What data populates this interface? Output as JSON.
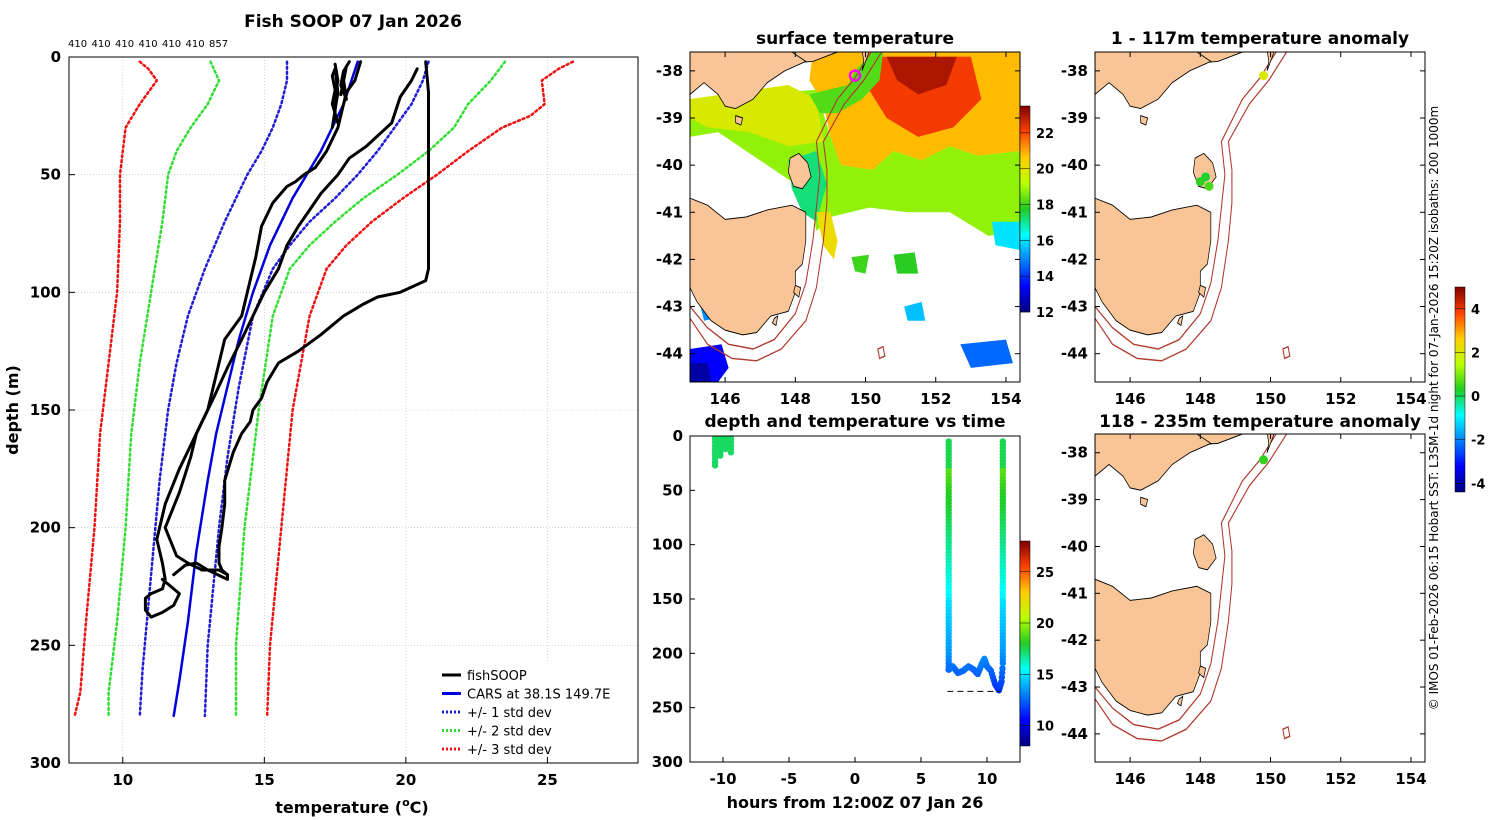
{
  "colors": {
    "land": "#f9c596",
    "fishsoop": "#000000",
    "cars": "#0000dd",
    "std1": "#1d1dd6",
    "std2": "#33dd33",
    "std3": "#ee1111",
    "isobath": "#b03a2e"
  },
  "side_note": "© IMOS 01-Feb-2026 06:15 Hobart SST: L3SM-1d night for 07-Jan-2026 15:20Z isobaths: 200  1000m",
  "chart_data": [
    {
      "id": "profile",
      "type": "line",
      "title": "Fish SOOP 07 Jan 2026",
      "xlabel": "temperature (°C)",
      "ylabel": "depth (m)",
      "xlim": [
        8.1,
        28.2
      ],
      "ylim": [
        300,
        0
      ],
      "xticks": [
        10,
        15,
        20,
        25
      ],
      "yticks": [
        0,
        50,
        100,
        150,
        200,
        250,
        300
      ],
      "grid": true,
      "counts": [
        "410",
        "410",
        "410",
        "410",
        "410",
        "410",
        "857"
      ],
      "legend": [
        {
          "label": "fishSOOP",
          "style": "fishsoop"
        },
        {
          "label": "CARS at 38.1S 149.7E",
          "style": "cars"
        },
        {
          "label": "+/- 1 std dev",
          "style": "std1"
        },
        {
          "label": "+/- 2 std dev",
          "style": "std2"
        },
        {
          "label": "+/- 3 std dev",
          "style": "std3"
        }
      ],
      "series": [
        {
          "name": "fishSOOP cast 1",
          "style": "fishsoop",
          "x": [
            17.5,
            17.6,
            17.5,
            17.5,
            17.6,
            17.4,
            17.5,
            17.4,
            17.5,
            17.6,
            17.4
          ],
          "y": [
            3,
            10,
            17,
            25,
            28,
            20,
            14,
            8,
            5,
            15,
            30
          ]
        },
        {
          "name": "fishSOOP cast 2",
          "style": "fishsoop",
          "x": [
            18.0,
            17.8,
            17.7,
            17.9,
            17.8,
            17.9,
            17.7
          ],
          "y": [
            2,
            6,
            12,
            18,
            10,
            4,
            16
          ]
        },
        {
          "name": "fishSOOP cast 3",
          "style": "fishsoop",
          "x": [
            20.7,
            20.8,
            20.8,
            20.8,
            20.8,
            20.7,
            19.8,
            19.0,
            18.5,
            17.8,
            17.0,
            16.2,
            15.5,
            15.1,
            14.9,
            14.6,
            14.5,
            14.2,
            13.9,
            13.6,
            13.6,
            13.5,
            13.4,
            13.4,
            13.4,
            13.5,
            13.6,
            13.7
          ],
          "y": [
            2,
            15,
            45,
            85,
            90,
            95,
            100,
            102,
            105,
            110,
            118,
            125,
            130,
            138,
            145,
            150,
            155,
            160,
            168,
            180,
            190,
            200,
            208,
            212,
            215,
            218,
            219,
            220
          ]
        },
        {
          "name": "fishSOOP cast 4",
          "style": "fishsoop",
          "x": [
            20.4,
            20.2,
            19.8,
            19.5,
            18.6,
            18.0,
            17.6,
            17.0,
            16.6,
            16.2,
            15.8,
            15.5,
            15.0,
            14.6,
            14.2,
            13.7,
            13.2,
            12.6,
            12.0,
            11.5,
            11.2,
            11.4,
            11.5,
            11.4,
            11.0,
            10.8,
            10.8,
            11.0,
            11.4,
            11.8,
            12.0,
            11.8,
            11.4
          ],
          "y": [
            5,
            10,
            17,
            28,
            38,
            43,
            50,
            58,
            65,
            72,
            80,
            90,
            100,
            110,
            120,
            132,
            145,
            160,
            175,
            190,
            205,
            215,
            222,
            226,
            228,
            230,
            235,
            238,
            236,
            233,
            228,
            226,
            222
          ]
        },
        {
          "name": "fishSOOP cast 5",
          "style": "fishsoop",
          "x": [
            18.4,
            18.2,
            17.9,
            17.6,
            17.2,
            16.8,
            16.4,
            16.1,
            15.8,
            15.3,
            14.9,
            14.7,
            14.4,
            14.2,
            13.6,
            13.2,
            13.0,
            12.6,
            12.4,
            12.0,
            11.5,
            11.9,
            12.3,
            12.8,
            13.4,
            13.7,
            13.7,
            13.0,
            12.6,
            12.2,
            11.8
          ],
          "y": [
            2,
            10,
            15,
            30,
            40,
            47,
            50,
            53,
            55,
            62,
            72,
            85,
            100,
            110,
            120,
            140,
            150,
            160,
            170,
            185,
            200,
            212,
            215,
            218,
            218,
            220,
            222,
            218,
            215,
            216,
            220
          ]
        },
        {
          "name": "CARS at 38.1S 149.7E",
          "style": "cars",
          "x": [
            18.3,
            17.8,
            17.0,
            16.0,
            15.2,
            14.6,
            14.1,
            13.7,
            13.3,
            13.0,
            12.6,
            12.3,
            12.0,
            11.8
          ],
          "y": [
            2,
            20,
            40,
            60,
            80,
            100,
            120,
            140,
            160,
            180,
            210,
            240,
            265,
            280
          ]
        },
        {
          "name": "-1 std dev",
          "style": "std1",
          "x": [
            15.8,
            15.8,
            15.6,
            15.3,
            14.9,
            14.4,
            13.6,
            12.9,
            12.3,
            11.9,
            11.6,
            11.3,
            11.0,
            10.7,
            10.6
          ],
          "y": [
            2,
            10,
            20,
            30,
            40,
            50,
            70,
            90,
            110,
            130,
            150,
            180,
            220,
            260,
            280
          ]
        },
        {
          "name": "+1 std dev",
          "style": "std1",
          "x": [
            20.8,
            20.6,
            20.2,
            19.6,
            19.0,
            18.3,
            17.5,
            16.6,
            15.9,
            15.3,
            14.6,
            14.1,
            13.7,
            13.4,
            13.0,
            12.9
          ],
          "y": [
            2,
            10,
            20,
            30,
            40,
            50,
            60,
            70,
            80,
            90,
            110,
            140,
            170,
            200,
            250,
            280
          ]
        },
        {
          "name": "-2 std dev",
          "style": "std2",
          "x": [
            13.1,
            13.4,
            13.0,
            12.4,
            11.9,
            11.6,
            11.4,
            11.0,
            10.6,
            10.3,
            10.1,
            9.8,
            9.5,
            9.5
          ],
          "y": [
            2,
            10,
            20,
            30,
            40,
            50,
            70,
            100,
            130,
            160,
            200,
            240,
            270,
            280
          ]
        },
        {
          "name": "+2 std dev",
          "style": "std2",
          "x": [
            23.5,
            23.0,
            22.2,
            21.7,
            20.8,
            19.7,
            18.5,
            17.5,
            16.6,
            15.9,
            15.3,
            14.8,
            14.3,
            14.0,
            14.0
          ],
          "y": [
            2,
            10,
            20,
            30,
            40,
            50,
            60,
            70,
            80,
            90,
            110,
            150,
            200,
            250,
            280
          ]
        },
        {
          "name": "-3 std dev",
          "style": "std3",
          "x": [
            10.6,
            10.9,
            11.2,
            10.6,
            10.1,
            10.0,
            9.9,
            9.9,
            9.8,
            9.5,
            9.2,
            9.0,
            8.7,
            8.5,
            8.3
          ],
          "y": [
            2,
            5,
            10,
            20,
            30,
            40,
            50,
            70,
            100,
            130,
            160,
            200,
            240,
            270,
            280
          ]
        },
        {
          "name": "+3 std dev",
          "style": "std3",
          "x": [
            25.9,
            25.4,
            24.8,
            24.9,
            24.4,
            23.4,
            22.2,
            21.1,
            19.9,
            18.8,
            17.9,
            17.2,
            16.6,
            16.0,
            15.6,
            15.2,
            15.1
          ],
          "y": [
            2,
            5,
            10,
            20,
            25,
            30,
            40,
            50,
            60,
            70,
            80,
            90,
            110,
            150,
            200,
            250,
            280
          ]
        }
      ]
    },
    {
      "id": "sst",
      "type": "heatmap",
      "title": "surface temperature",
      "xlim": [
        145,
        154.4
      ],
      "ylim": [
        -44.6,
        -37.6
      ],
      "xticks": [
        146,
        148,
        150,
        152,
        154
      ],
      "yticks": [
        -38,
        -39,
        -40,
        -41,
        -42,
        -43,
        -44
      ],
      "colorbar": {
        "min": 12,
        "max": 23.5,
        "ticks": [
          12,
          14,
          16,
          18,
          20,
          22
        ],
        "unit": "°C"
      },
      "marker": {
        "lon": 149.7,
        "lat": -38.1
      }
    },
    {
      "id": "depthtime",
      "type": "scatter",
      "title": "depth and temperature vs time",
      "xlabel": "hours from 12:00Z 07 Jan 26",
      "xlim": [
        -12.5,
        12.5
      ],
      "ylim": [
        300,
        0
      ],
      "xticks": [
        -10,
        -5,
        0,
        5,
        10
      ],
      "yticks": [
        0,
        50,
        100,
        150,
        200,
        250,
        300
      ],
      "colorbar": {
        "min": 8,
        "max": 28,
        "ticks": [
          10,
          15,
          20,
          25
        ]
      },
      "bottom_line": {
        "depth": 235,
        "from": 7.0,
        "to": 11.0
      }
    },
    {
      "id": "anom1",
      "type": "scatter",
      "title": "1 - 117m temperature anomaly",
      "xlim": [
        145,
        154.4
      ],
      "ylim": [
        -44.6,
        -37.6
      ],
      "xticks": [
        146,
        148,
        150,
        152,
        154
      ],
      "yticks": [
        -38,
        -39,
        -40,
        -41,
        -42,
        -43,
        -44
      ],
      "points": [
        {
          "lon": 149.8,
          "lat": -38.1,
          "anom": 2.0
        },
        {
          "lon": 148.0,
          "lat": -40.35,
          "anom": 0.4
        },
        {
          "lon": 148.15,
          "lat": -40.25,
          "anom": 0.2
        },
        {
          "lon": 148.25,
          "lat": -40.45,
          "anom": 0.6
        }
      ]
    },
    {
      "id": "anom2",
      "type": "scatter",
      "title": "118 - 235m temperature anomaly",
      "xlim": [
        145,
        154.4
      ],
      "ylim": [
        -44.6,
        -37.6
      ],
      "xticks": [
        146,
        148,
        150,
        152,
        154
      ],
      "yticks": [
        -38,
        -39,
        -40,
        -41,
        -42,
        -43,
        -44
      ],
      "points": [
        {
          "lon": 149.8,
          "lat": -38.15,
          "anom": 0.4
        }
      ]
    },
    {
      "id": "anombar",
      "type": "colorbar",
      "min": -4.4,
      "max": 5.0,
      "ticks": [
        -4,
        -2,
        0,
        2,
        4
      ]
    }
  ]
}
